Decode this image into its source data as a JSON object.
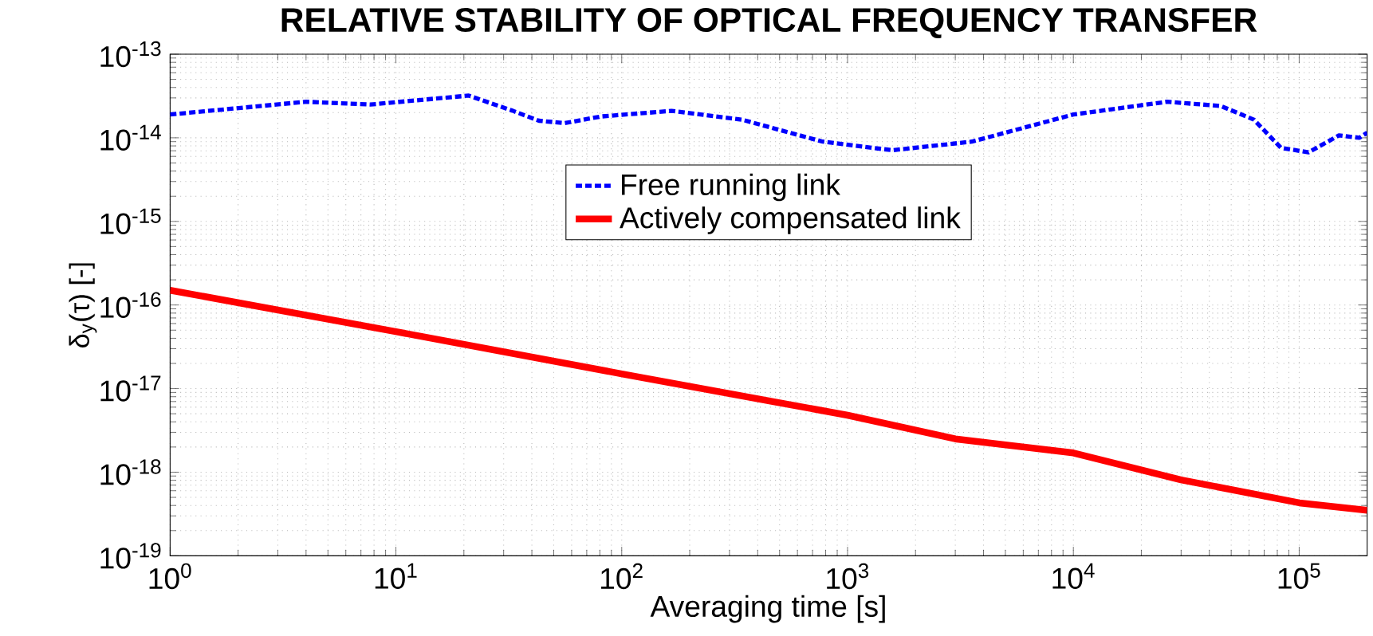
{
  "chart_data": {
    "type": "line",
    "title": "RELATIVE STABILITY OF OPTICAL FREQUENCY TRANSFER",
    "xlabel": "Averaging time [s]",
    "ylabel": "δ$_{y}$(τ) [-]",
    "log": "xy",
    "grid": true,
    "legend": "top",
    "marker": "none",
    "xlim": [
      1,
      200000
    ],
    "ylim": [
      1e-19,
      1e-13
    ],
    "xticks": [
      {
        "value": 1,
        "label": "10$^{0}$"
      },
      {
        "value": 10,
        "label": "10$^{1}$"
      },
      {
        "value": 100,
        "label": "10$^{2}$"
      },
      {
        "value": 1000,
        "label": "10$^{3}$"
      },
      {
        "value": 10000,
        "label": "10$^{4}$"
      },
      {
        "value": 100000,
        "label": "10$^{5}$"
      }
    ],
    "yticks": [
      {
        "value": 1e-19,
        "label": "10$^{-19}$"
      },
      {
        "value": 1e-18,
        "label": "10$^{-18}$"
      },
      {
        "value": 1e-17,
        "label": "10$^{-17}$"
      },
      {
        "value": 1e-16,
        "label": "10$^{-16}$"
      },
      {
        "value": 1e-15,
        "label": "10$^{-15}$"
      },
      {
        "value": 1e-14,
        "label": "10$^{-14}$"
      },
      {
        "value": 1e-13,
        "label": "10$^{-13}$"
      }
    ],
    "series": [
      {
        "name": "Free running link",
        "color": "#0000ff",
        "line_style": "dashed",
        "x": [
          1,
          4,
          7.7,
          21,
          33,
          43,
          56,
          81,
          166,
          340,
          776,
          1580,
          3550,
          10000,
          26000,
          45000,
          63000,
          83000,
          110000,
          150000,
          185000,
          200000
        ],
        "values": [
          1.9e-14,
          2.7e-14,
          2.5e-14,
          3.2e-14,
          2.1e-14,
          1.6e-14,
          1.5e-14,
          1.8e-14,
          2.1e-14,
          1.65e-14,
          9e-15,
          7.1e-15,
          9e-15,
          1.9e-14,
          2.7e-14,
          2.4e-14,
          1.65e-14,
          7.6e-15,
          6.7e-15,
          1.07e-14,
          1e-14,
          1.15e-14
        ]
      },
      {
        "name": "Actively compensated link",
        "color": "#ff0000",
        "line_style": "solid",
        "x": [
          1,
          10,
          100,
          1000,
          3000,
          10000,
          30000,
          100000,
          200000
        ],
        "values": [
          1.5e-16,
          4.8e-17,
          1.5e-17,
          4.8e-18,
          2.5e-18,
          1.7e-18,
          8.1e-19,
          4.3e-19,
          3.5e-19
        ]
      }
    ]
  }
}
